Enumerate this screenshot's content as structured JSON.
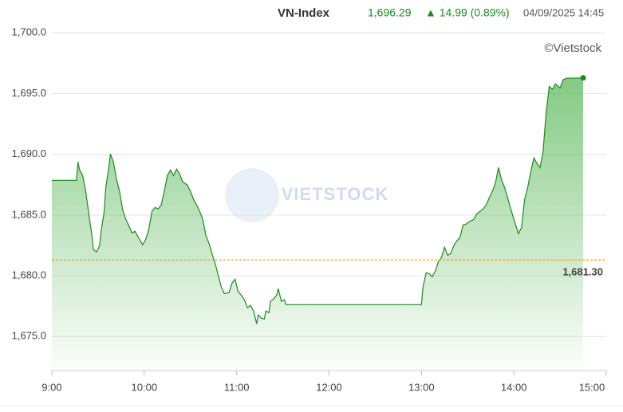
{
  "chart_data": {
    "type": "line",
    "header": {
      "title": "VN-Index",
      "price": "1,696.29",
      "change": "▲ 14.99 (0.89%)",
      "datetime": "04/09/2025 14:45"
    },
    "credit": "©Vietstock",
    "watermark": "VIETSTOCK",
    "x": [
      540,
      556,
      557,
      558,
      560,
      562,
      564,
      566,
      567,
      569,
      571,
      572,
      574,
      575,
      577,
      578,
      580,
      582,
      584,
      586,
      588,
      590,
      592,
      594,
      596,
      599,
      601,
      603,
      605,
      607,
      609,
      611,
      613,
      615,
      617,
      619,
      621,
      623,
      625,
      628,
      630,
      632,
      634,
      636,
      638,
      640,
      642,
      644,
      646,
      648,
      650,
      652,
      655,
      657,
      659,
      661,
      663,
      665,
      667,
      669,
      671,
      673,
      674,
      676,
      678,
      679,
      681,
      682,
      684,
      686,
      687,
      689,
      691,
      692,
      780,
      781,
      783,
      785,
      787,
      789,
      791,
      793,
      795,
      797,
      799,
      801,
      803,
      805,
      807,
      809,
      811,
      814,
      816,
      818,
      820,
      822,
      824,
      826,
      828,
      830,
      832,
      834,
      836,
      838,
      840,
      843,
      845,
      847,
      849,
      851,
      853,
      855,
      857,
      859,
      861,
      863,
      865,
      867,
      870,
      872,
      874,
      885
    ],
    "series": [
      {
        "name": "VN-Index",
        "color": "#1e8a1e",
        "values": [
          1687.86,
          1687.86,
          1689.37,
          1688.71,
          1688.26,
          1686.94,
          1685.11,
          1683.33,
          1682.15,
          1681.96,
          1682.48,
          1683.66,
          1685.3,
          1687.27,
          1688.91,
          1690.03,
          1689.37,
          1687.93,
          1686.94,
          1685.43,
          1684.65,
          1684.12,
          1683.53,
          1683.66,
          1683.2,
          1682.55,
          1683.01,
          1683.86,
          1685.3,
          1685.63,
          1685.5,
          1685.83,
          1686.94,
          1688.26,
          1688.71,
          1688.26,
          1688.78,
          1688.39,
          1687.73,
          1687.47,
          1686.94,
          1686.29,
          1685.83,
          1685.3,
          1684.65,
          1683.33,
          1682.68,
          1681.82,
          1681.04,
          1680.05,
          1679.07,
          1678.54,
          1678.61,
          1679.4,
          1679.72,
          1678.67,
          1678.41,
          1678.02,
          1677.36,
          1677.56,
          1677.1,
          1676.05,
          1676.77,
          1676.51,
          1676.44,
          1677.1,
          1676.97,
          1677.89,
          1678.08,
          1678.41,
          1678.94,
          1677.89,
          1678.02,
          1677.62,
          1677.62,
          1679.07,
          1680.25,
          1680.18,
          1679.92,
          1680.38,
          1681.17,
          1681.5,
          1682.35,
          1681.69,
          1681.82,
          1682.48,
          1682.87,
          1683.14,
          1684.19,
          1684.25,
          1684.45,
          1684.65,
          1685.11,
          1685.3,
          1685.5,
          1685.83,
          1686.42,
          1686.94,
          1687.6,
          1688.91,
          1687.93,
          1687.27,
          1686.42,
          1685.5,
          1684.65,
          1683.47,
          1683.99,
          1686.29,
          1687.27,
          1688.58,
          1689.7,
          1689.24,
          1688.91,
          1690.22,
          1693.5,
          1695.6,
          1695.34,
          1695.8,
          1695.47,
          1696.13,
          1696.26,
          1696.29
        ]
      }
    ],
    "reference": {
      "value": 1681.3,
      "label": "1,681.30",
      "color": "#f0a020"
    },
    "xlim": [
      540,
      900
    ],
    "xticks": [
      {
        "value": 540,
        "label": "9:00"
      },
      {
        "value": 600,
        "label": "10:00"
      },
      {
        "value": 660,
        "label": "11:00"
      },
      {
        "value": 720,
        "label": "12:00"
      },
      {
        "value": 780,
        "label": "13:00"
      },
      {
        "value": 840,
        "label": "14:00"
      },
      {
        "value": 900,
        "label": "15:00"
      }
    ],
    "ylim": [
      1672,
      1701
    ],
    "yticks": [
      {
        "value": 1675,
        "label": "1,675.0"
      },
      {
        "value": 1680,
        "label": "1,680.0"
      },
      {
        "value": 1685,
        "label": "1,685.0"
      },
      {
        "value": 1690,
        "label": "1,690.0"
      },
      {
        "value": 1695,
        "label": "1,695.0"
      },
      {
        "value": 1700,
        "label": "1,700.0"
      }
    ],
    "grid": true
  }
}
